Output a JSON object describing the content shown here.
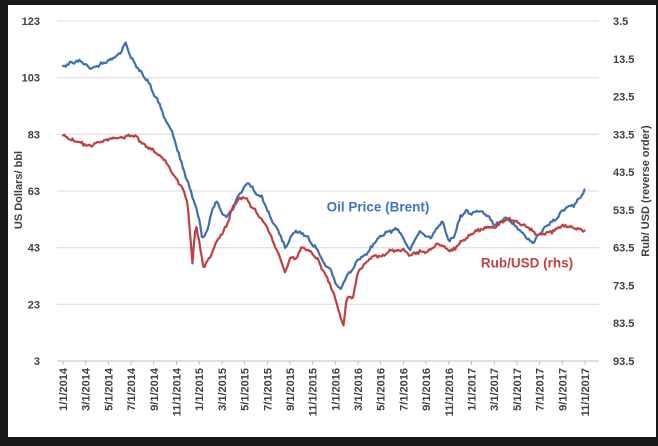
{
  "palette": {
    "frame": "#181818",
    "background": "#ffffff",
    "grid": "#d9d9d9",
    "axis_line": "#bfbfbf",
    "tick_text": "#3f3f3f"
  },
  "chart_data": {
    "type": "line",
    "title": "",
    "x_axis": {
      "tick_labels": [
        "1/1/2014",
        "3/1/2014",
        "5/1/2014",
        "7/1/2014",
        "9/1/2014",
        "11/1/2014",
        "1/1/2015",
        "3/1/2015",
        "5/1/2015",
        "7/1/2015",
        "9/1/2015",
        "11/1/2015",
        "1/1/2016",
        "3/1/2016",
        "5/1/2016",
        "7/1/2016",
        "9/1/2016",
        "11/1/2016",
        "1/1/2017",
        "3/1/2017",
        "5/1/2017",
        "7/1/2017",
        "9/1/2017",
        "11/1/2017"
      ],
      "months_per_tick": 2,
      "range_months": [
        0,
        46
      ]
    },
    "left_axis": {
      "title": "US Dollars/ bbl",
      "ticks": [
        123,
        103,
        83,
        63,
        43,
        23,
        3
      ],
      "min": 3,
      "max": 123
    },
    "right_axis": {
      "title": "Rub/ USD (reverse order)",
      "ticks": [
        3.5,
        13.5,
        23.5,
        33.5,
        43.5,
        53.5,
        63.5,
        73.5,
        83.5,
        93.5
      ],
      "min": 3.5,
      "max": 93.5,
      "reversed": true
    },
    "annotations": {
      "oil": {
        "text": "Oil Price (Brent)",
        "color": "#3e74c6"
      },
      "rub": {
        "text": "Rub/USD (rhs)",
        "color": "#c24040"
      }
    },
    "points_format": "[months_since_1_1_2014, value]",
    "series": [
      {
        "name": "Oil Price (Brent)",
        "axis": "left",
        "unit": "USD/bbl",
        "color": "#3f6eb2",
        "points": [
          [
            0,
            107
          ],
          [
            0.5,
            108
          ],
          [
            1,
            108.5
          ],
          [
            1.5,
            109
          ],
          [
            2,
            107.5
          ],
          [
            2.5,
            106
          ],
          [
            3,
            107
          ],
          [
            3.5,
            108
          ],
          [
            4,
            109
          ],
          [
            4.5,
            110
          ],
          [
            5,
            111.5
          ],
          [
            5.5,
            115
          ],
          [
            6,
            110
          ],
          [
            6.5,
            107
          ],
          [
            7,
            104
          ],
          [
            7.5,
            102
          ],
          [
            8,
            97
          ],
          [
            8.5,
            94
          ],
          [
            9,
            88
          ],
          [
            9.5,
            85
          ],
          [
            10,
            79
          ],
          [
            10.5,
            72
          ],
          [
            11,
            66
          ],
          [
            11.5,
            60
          ],
          [
            12,
            53
          ],
          [
            12.3,
            46
          ],
          [
            12.7,
            49
          ],
          [
            13,
            54
          ],
          [
            13.5,
            60
          ],
          [
            14,
            55
          ],
          [
            14.5,
            54
          ],
          [
            15,
            57
          ],
          [
            15.5,
            62
          ],
          [
            16,
            64
          ],
          [
            16.3,
            66.5
          ],
          [
            17,
            62
          ],
          [
            17.5,
            61
          ],
          [
            18,
            56
          ],
          [
            18.5,
            52
          ],
          [
            19,
            49
          ],
          [
            19.6,
            42.5
          ],
          [
            20,
            46
          ],
          [
            20.5,
            49
          ],
          [
            21,
            48
          ],
          [
            21.5,
            47
          ],
          [
            22,
            44
          ],
          [
            22.5,
            42
          ],
          [
            23,
            37
          ],
          [
            23.5,
            36
          ],
          [
            24,
            31
          ],
          [
            24.4,
            28
          ],
          [
            25,
            33
          ],
          [
            25.5,
            35
          ],
          [
            26,
            39
          ],
          [
            26.5,
            40
          ],
          [
            27,
            42
          ],
          [
            27.5,
            45
          ],
          [
            28,
            47
          ],
          [
            28.5,
            48.5
          ],
          [
            29,
            49
          ],
          [
            29.5,
            50
          ],
          [
            30,
            46
          ],
          [
            30.6,
            42
          ],
          [
            31,
            46
          ],
          [
            31.5,
            49
          ],
          [
            32,
            46.5
          ],
          [
            32.5,
            47
          ],
          [
            33,
            50
          ],
          [
            33.5,
            52
          ],
          [
            34,
            45
          ],
          [
            34.5,
            47
          ],
          [
            35,
            54
          ],
          [
            35.5,
            56
          ],
          [
            36,
            55
          ],
          [
            36.5,
            56
          ],
          [
            37,
            55.5
          ],
          [
            37.5,
            54
          ],
          [
            38,
            51
          ],
          [
            38.5,
            52
          ],
          [
            39,
            53.5
          ],
          [
            39.5,
            52
          ],
          [
            40,
            50
          ],
          [
            40.5,
            48
          ],
          [
            41,
            46
          ],
          [
            41.4,
            44.8
          ],
          [
            42,
            48
          ],
          [
            42.5,
            50.5
          ],
          [
            43,
            52
          ],
          [
            43.5,
            53
          ],
          [
            44,
            56
          ],
          [
            44.5,
            57.5
          ],
          [
            45,
            58
          ],
          [
            45.5,
            60.5
          ],
          [
            46,
            63.5
          ]
        ]
      },
      {
        "name": "Rub/USD (rhs)",
        "axis": "right",
        "unit": "RUB per USD",
        "color": "#be4040",
        "points": [
          [
            0,
            33.8
          ],
          [
            0.5,
            34.5
          ],
          [
            1,
            35.2
          ],
          [
            1.5,
            35.8
          ],
          [
            2,
            36.3
          ],
          [
            2.5,
            36.5
          ],
          [
            3,
            35.7
          ],
          [
            3.5,
            35.2
          ],
          [
            4,
            34.8
          ],
          [
            4.5,
            34.6
          ],
          [
            5,
            34.4
          ],
          [
            5.5,
            34.1
          ],
          [
            6,
            33.9
          ],
          [
            6.5,
            34.2
          ],
          [
            7,
            36
          ],
          [
            7.5,
            37
          ],
          [
            8,
            37.8
          ],
          [
            8.5,
            39
          ],
          [
            9,
            40.5
          ],
          [
            9.5,
            43
          ],
          [
            10,
            45.5
          ],
          [
            10.5,
            47.5
          ],
          [
            11,
            52
          ],
          [
            11.4,
            67.5
          ],
          [
            11.7,
            57
          ],
          [
            12,
            62
          ],
          [
            12.4,
            69
          ],
          [
            12.7,
            67
          ],
          [
            13,
            66
          ],
          [
            13.5,
            62
          ],
          [
            14,
            60
          ],
          [
            14.5,
            57
          ],
          [
            15,
            52.5
          ],
          [
            15.5,
            50.5
          ],
          [
            16,
            50
          ],
          [
            16.5,
            52
          ],
          [
            17,
            54
          ],
          [
            17.5,
            56
          ],
          [
            18,
            58
          ],
          [
            18.5,
            62
          ],
          [
            19,
            65
          ],
          [
            19.6,
            70.5
          ],
          [
            20,
            66
          ],
          [
            20.5,
            66.5
          ],
          [
            21,
            63.5
          ],
          [
            21.5,
            64
          ],
          [
            22,
            65
          ],
          [
            22.5,
            67
          ],
          [
            23,
            70
          ],
          [
            23.5,
            73
          ],
          [
            24,
            77
          ],
          [
            24.7,
            84.5
          ],
          [
            25,
            76.5
          ],
          [
            25.5,
            77
          ],
          [
            26,
            70
          ],
          [
            26.5,
            68
          ],
          [
            27,
            66.5
          ],
          [
            27.5,
            65.5
          ],
          [
            28,
            66
          ],
          [
            28.5,
            65
          ],
          [
            29,
            64
          ],
          [
            29.5,
            64.5
          ],
          [
            30,
            64
          ],
          [
            30.5,
            65.5
          ],
          [
            31,
            65
          ],
          [
            31.5,
            64.5
          ],
          [
            32,
            64.8
          ],
          [
            32.5,
            63.5
          ],
          [
            33,
            62.5
          ],
          [
            33.5,
            63
          ],
          [
            34,
            64.5
          ],
          [
            34.5,
            64
          ],
          [
            35,
            62
          ],
          [
            35.5,
            61
          ],
          [
            36,
            60
          ],
          [
            36.5,
            59
          ],
          [
            37,
            58.5
          ],
          [
            37.5,
            58
          ],
          [
            38,
            58.3
          ],
          [
            38.5,
            57
          ],
          [
            39,
            56.3
          ],
          [
            39.5,
            56
          ],
          [
            40,
            56.8
          ],
          [
            40.5,
            57.5
          ],
          [
            41,
            58
          ],
          [
            41.5,
            59.5
          ],
          [
            42,
            60.2
          ],
          [
            42.5,
            59.5
          ],
          [
            43,
            59.3
          ],
          [
            43.5,
            58.5
          ],
          [
            44,
            57.8
          ],
          [
            44.5,
            58
          ],
          [
            45,
            58.2
          ],
          [
            45.5,
            58.5
          ],
          [
            46,
            59
          ]
        ]
      }
    ],
    "legend_position": "inline-labels",
    "grid": true
  }
}
